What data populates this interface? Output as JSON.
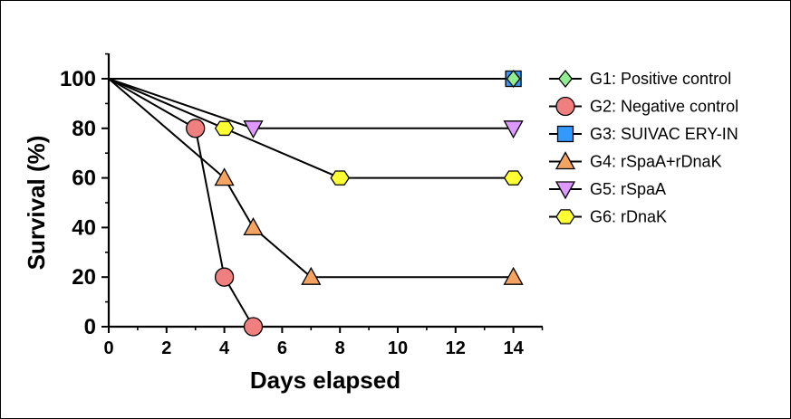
{
  "chart_data": {
    "type": "line",
    "xlabel": "Days elapsed",
    "ylabel": "Survival (%)",
    "xlim": [
      0,
      15
    ],
    "ylim": [
      0,
      110
    ],
    "x_ticks": [
      "0",
      "2",
      "4",
      "6",
      "8",
      "10",
      "12",
      "14"
    ],
    "y_ticks": [
      "0",
      "20",
      "40",
      "60",
      "80",
      "100"
    ],
    "grid": false,
    "legend_position": "right",
    "series": [
      {
        "name": "G1: Positive control",
        "marker": "diamond",
        "color": "#90ee90",
        "x": [
          0,
          14
        ],
        "y": [
          100,
          100
        ]
      },
      {
        "name": "G2: Negative control",
        "marker": "circle",
        "color": "#f08080",
        "x": [
          0,
          3,
          4,
          5
        ],
        "y": [
          100,
          80,
          20,
          0
        ]
      },
      {
        "name": "G3: SUIVAC ERY-IN",
        "marker": "square",
        "color": "#3399ff",
        "x": [
          0,
          14
        ],
        "y": [
          100,
          100
        ]
      },
      {
        "name": "G4: rSpaA+rDnaK",
        "marker": "triangle-up",
        "color": "#f4a460",
        "x": [
          0,
          4,
          5,
          7,
          14
        ],
        "y": [
          100,
          60,
          40,
          20,
          20
        ]
      },
      {
        "name": "G5: rSpaA",
        "marker": "triangle-down",
        "color": "#dd99ff",
        "x": [
          0,
          5,
          14
        ],
        "y": [
          100,
          80,
          80
        ]
      },
      {
        "name": "G6: rDnaK",
        "marker": "hexagon",
        "color": "#ffff33",
        "x": [
          0,
          4,
          8,
          14
        ],
        "y": [
          100,
          80,
          60,
          60
        ]
      }
    ]
  }
}
